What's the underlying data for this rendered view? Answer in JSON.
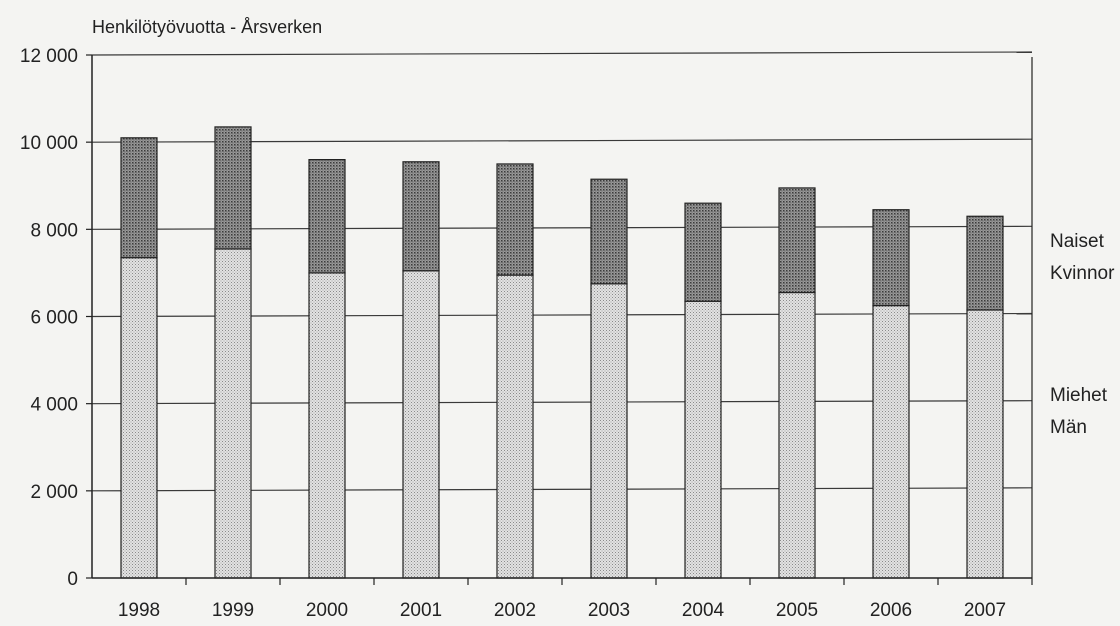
{
  "chart_data": {
    "type": "bar",
    "stacked": true,
    "ylabel": "Henkilötyövuotta - Årsverken",
    "ylim": [
      0,
      12000
    ],
    "yticks": [
      0,
      2000,
      4000,
      6000,
      8000,
      10000,
      12000
    ],
    "ytick_labels": [
      "0",
      "2 000",
      "4 000",
      "6 000",
      "8 000",
      "10 000",
      "12 000"
    ],
    "categories": [
      "1998",
      "1999",
      "2000",
      "2001",
      "2002",
      "2003",
      "2004",
      "2005",
      "2006",
      "2007"
    ],
    "series": [
      {
        "name_lines": [
          "Miehet",
          "Män"
        ],
        "values": [
          7350,
          7550,
          7000,
          7050,
          6950,
          6750,
          6350,
          6550,
          6250,
          6150
        ],
        "color": "#cfcfcf"
      },
      {
        "name_lines": [
          "Naiset",
          "Kvinnor"
        ],
        "values": [
          2750,
          2800,
          2600,
          2500,
          2550,
          2400,
          2250,
          2400,
          2200,
          2150
        ],
        "color": "#8f8f8f"
      }
    ],
    "grid": true,
    "legend_position": "right"
  }
}
